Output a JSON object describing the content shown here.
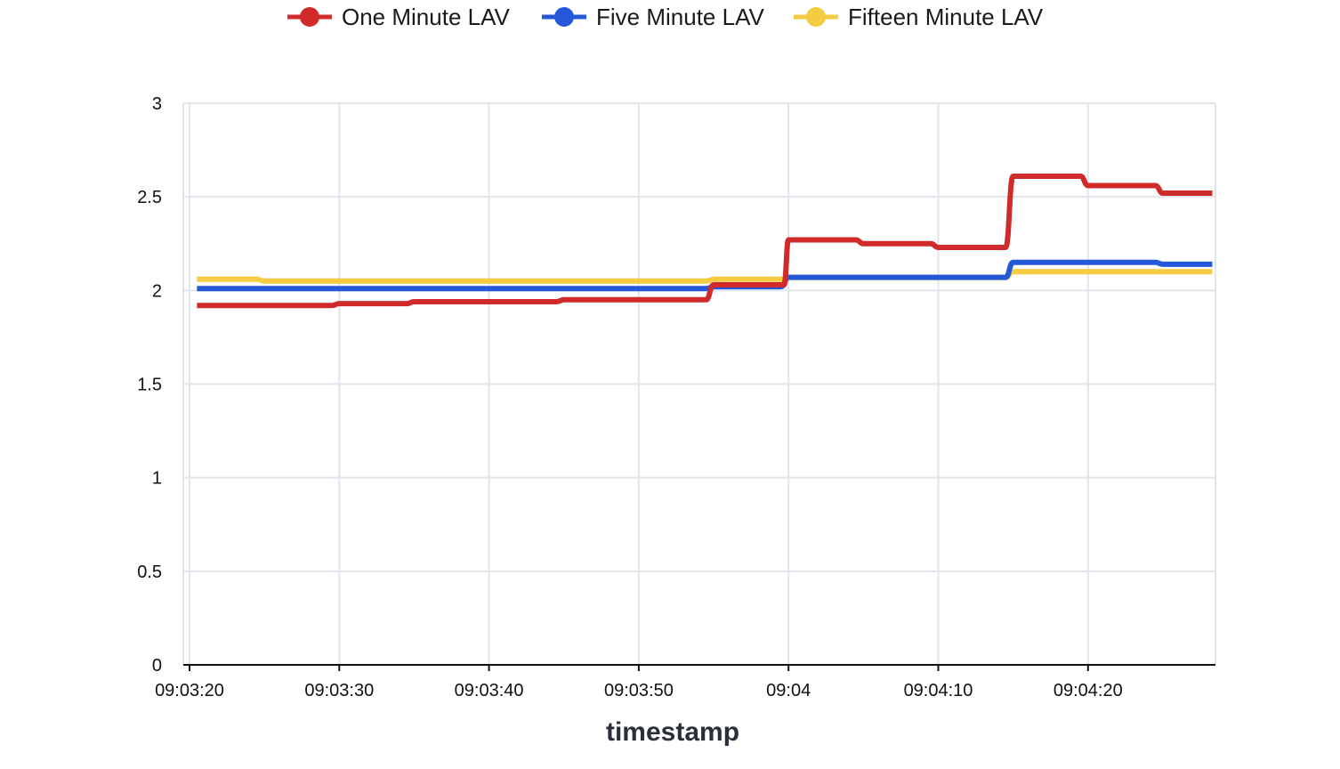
{
  "chart_data": {
    "type": "line",
    "title": "",
    "xlabel": "timestamp",
    "ylabel": "",
    "ylim": [
      0,
      3
    ],
    "y_ticks": [
      {
        "value": 0,
        "label": "0"
      },
      {
        "value": 0.5,
        "label": "0.5"
      },
      {
        "value": 1,
        "label": "1"
      },
      {
        "value": 1.5,
        "label": "1.5"
      },
      {
        "value": 2,
        "label": "2"
      },
      {
        "value": 2.5,
        "label": "2.5"
      },
      {
        "value": 3,
        "label": "3"
      }
    ],
    "x_unit": "seconds since 09:03:20",
    "xlim": [
      -0.2,
      68.3
    ],
    "x_ticks": [
      {
        "value": 0,
        "label": "09:03:20"
      },
      {
        "value": 10,
        "label": "09:03:30"
      },
      {
        "value": 20,
        "label": "09:03:40"
      },
      {
        "value": 30,
        "label": "09:03:50"
      },
      {
        "value": 40,
        "label": "09:04"
      },
      {
        "value": 50,
        "label": "09:04:10"
      },
      {
        "value": 60,
        "label": "09:04:20"
      }
    ],
    "grid": true,
    "legend_position": "top",
    "series": [
      {
        "name": "One Minute LAV",
        "color": "#d12a2a",
        "points": [
          [
            0.5,
            1.92
          ],
          [
            9.5,
            1.92
          ],
          [
            10,
            1.93
          ],
          [
            14.5,
            1.93
          ],
          [
            15,
            1.94
          ],
          [
            24.5,
            1.94
          ],
          [
            25,
            1.95
          ],
          [
            34.5,
            1.95
          ],
          [
            35,
            2.03
          ],
          [
            39.7,
            2.03
          ],
          [
            40,
            2.27
          ],
          [
            44.5,
            2.27
          ],
          [
            45,
            2.25
          ],
          [
            49.5,
            2.25
          ],
          [
            50,
            2.23
          ],
          [
            54.5,
            2.23
          ],
          [
            55,
            2.61
          ],
          [
            59.5,
            2.61
          ],
          [
            60,
            2.56
          ],
          [
            64.5,
            2.56
          ],
          [
            65,
            2.52
          ],
          [
            68.3,
            2.52
          ]
        ]
      },
      {
        "name": "Five Minute LAV",
        "color": "#2558d9",
        "points": [
          [
            0.5,
            2.01
          ],
          [
            34.5,
            2.01
          ],
          [
            35,
            2.02
          ],
          [
            39.5,
            2.02
          ],
          [
            40,
            2.07
          ],
          [
            54.5,
            2.07
          ],
          [
            55,
            2.15
          ],
          [
            64.5,
            2.15
          ],
          [
            65,
            2.14
          ],
          [
            68.3,
            2.14
          ]
        ]
      },
      {
        "name": "Fifteen Minute LAV",
        "color": "#f5cb42",
        "points": [
          [
            0.5,
            2.06
          ],
          [
            4.5,
            2.06
          ],
          [
            5,
            2.05
          ],
          [
            34.5,
            2.05
          ],
          [
            35,
            2.06
          ],
          [
            39.5,
            2.06
          ],
          [
            40,
            2.07
          ],
          [
            54.5,
            2.07
          ],
          [
            55,
            2.1
          ],
          [
            68.3,
            2.1
          ]
        ]
      }
    ]
  }
}
